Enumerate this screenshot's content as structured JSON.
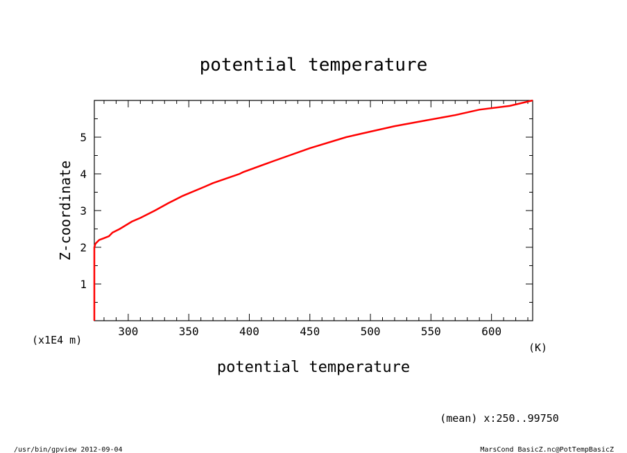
{
  "chart_data": {
    "type": "line",
    "title": "potential temperature",
    "xlabel": "potential temperature",
    "ylabel": "Z-coordinate",
    "x_unit": "(K)",
    "y_unit": "(x1E4 m)",
    "xlim": [
      272,
      634
    ],
    "ylim": [
      0,
      6
    ],
    "x_ticks": [
      300,
      350,
      400,
      450,
      500,
      550,
      600
    ],
    "y_ticks": [
      1,
      2,
      3,
      4,
      5
    ],
    "grid": false,
    "series": [
      {
        "color": "#ff0000",
        "x": [
          272,
          272,
          273,
          276,
          280,
          284,
          287,
          293,
          303,
          310,
          322,
          333,
          345,
          363,
          370,
          392,
          395,
          420,
          450,
          480,
          500,
          520,
          545,
          570,
          590,
          615,
          634
        ],
        "y": [
          0,
          2.0,
          2.1,
          2.2,
          2.25,
          2.3,
          2.4,
          2.5,
          2.7,
          2.8,
          3.0,
          3.2,
          3.4,
          3.65,
          3.75,
          4.0,
          4.05,
          4.35,
          4.7,
          5.0,
          5.15,
          5.3,
          5.45,
          5.6,
          5.75,
          5.85,
          6.0
        ]
      }
    ],
    "annotation": "(mean) x:250..99750"
  },
  "footer": {
    "left": "/usr/bin/gpview  2012-09-04",
    "right": "MarsCond_BasicZ.nc@PotTempBasicZ"
  }
}
